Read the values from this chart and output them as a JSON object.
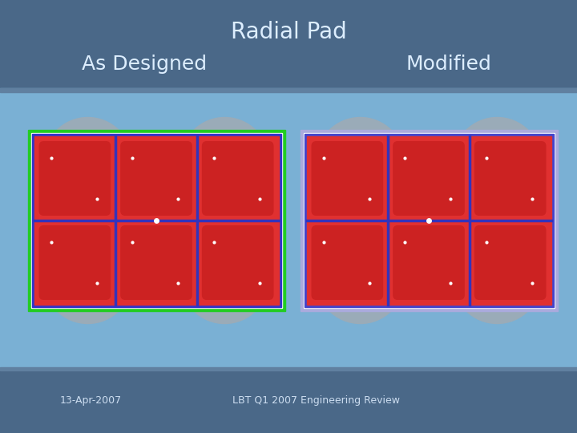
{
  "title": "Radial Pad",
  "subtitle_left": "As Designed",
  "subtitle_right": "Modified",
  "footer_left": "13-Apr-2007",
  "footer_center": "LBT Q1 2007 Engineering Review",
  "bg_color": "#5a7fa8",
  "mid_bg_color": "#7ab0d4",
  "title_color": "#ddeeff",
  "footer_color": "#ccddf0",
  "circle_color": "#9aabb8",
  "pad_red": "#e03030",
  "pad_dark_red": "#aa1515",
  "cell_inner_color": "#cc2222",
  "left_outer_border": "#22cc22",
  "left_inner_border": "#3333cc",
  "right_outer_border": "#aaaadd",
  "right_inner_border": "#4444cc",
  "grid_line_color": "#3333bb",
  "white_color": "#ffffff",
  "num_rows": 2,
  "num_cols": 3,
  "figw": 7.2,
  "figh": 5.4,
  "dpi": 100
}
